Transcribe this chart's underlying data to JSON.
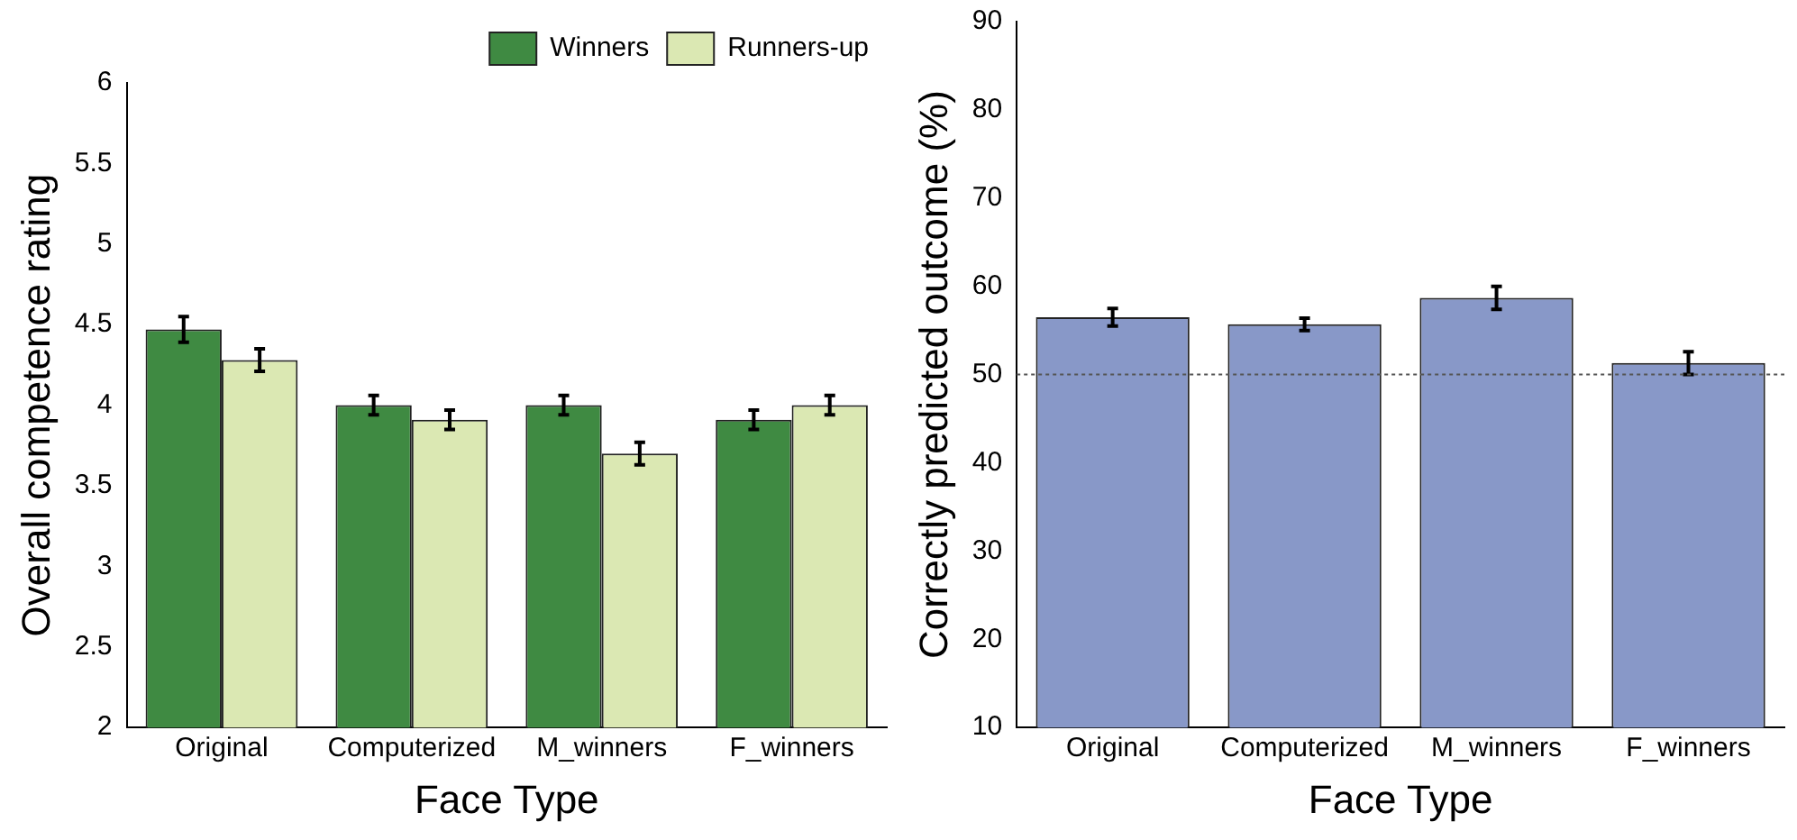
{
  "chart_data": [
    {
      "type": "bar",
      "xlabel": "Face Type",
      "ylabel": "Overall competence rating",
      "categories": [
        "Original",
        "Computerized",
        "M_winners",
        "F_winners"
      ],
      "series": [
        {
          "name": "Winners",
          "color": "#3f8a42",
          "values": [
            4.47,
            4.0,
            4.0,
            3.91
          ],
          "errors": [
            0.08,
            0.06,
            0.06,
            0.06
          ]
        },
        {
          "name": "Runners-up",
          "color": "#dbe8b3",
          "values": [
            4.28,
            3.91,
            3.7,
            4.0
          ],
          "errors": [
            0.07,
            0.06,
            0.07,
            0.06
          ]
        }
      ],
      "ylim": [
        2,
        6
      ],
      "yticks": [
        2,
        2.5,
        3,
        3.5,
        4,
        4.5,
        5,
        5.5,
        6
      ],
      "grid": false,
      "legend": "top right"
    },
    {
      "type": "bar",
      "xlabel": "Face Type",
      "ylabel": "Correctly predicted outcome (%)",
      "categories": [
        "Original",
        "Computerized",
        "M_winners",
        "F_winners"
      ],
      "series": [
        {
          "color": "#8898c8",
          "values": [
            56.5,
            55.7,
            58.7,
            51.3
          ],
          "errors": [
            1.0,
            0.7,
            1.3,
            1.3
          ]
        }
      ],
      "ylim": [
        10,
        90
      ],
      "yticks": [
        10,
        20,
        30,
        40,
        50,
        60,
        70,
        80,
        90
      ],
      "grid": false,
      "legend": false,
      "ref_lines": [
        {
          "axis": "y",
          "value": 50,
          "line_style": "dotted",
          "color": "#555555"
        }
      ]
    }
  ]
}
